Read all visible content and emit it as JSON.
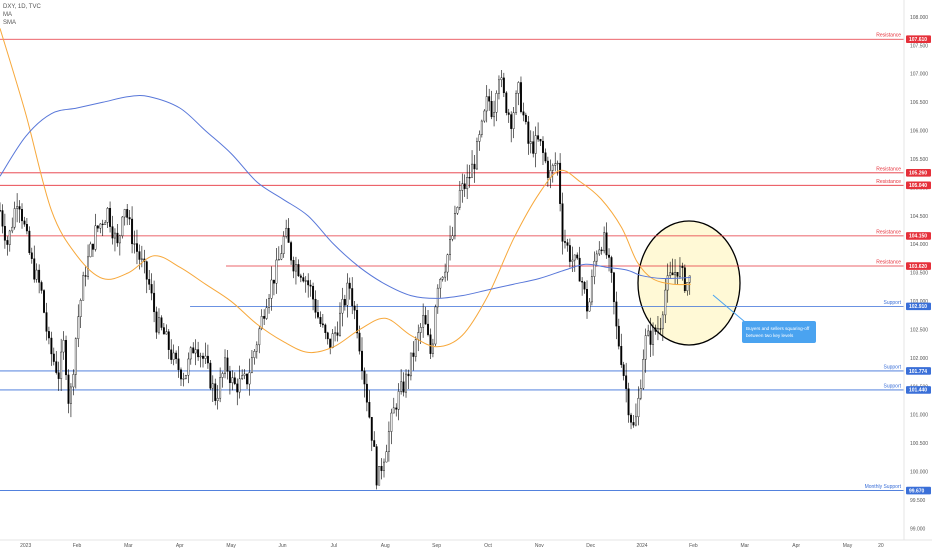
{
  "header": {
    "symbol_line": "DXY, 1D, TVC",
    "indicator_1": "MA",
    "indicator_2": "SMA"
  },
  "chart_data": {
    "type": "candlestick",
    "title": "DXY, 1D, TVC",
    "ylim": [
      98.8,
      108.3
    ],
    "price_ticks": [
      "108.000",
      "107.500",
      "107.000",
      "106.500",
      "106.000",
      "105.500",
      "105.000",
      "104.500",
      "104.000",
      "103.500",
      "103.000",
      "102.500",
      "102.000",
      "101.500",
      "101.000",
      "100.500",
      "100.000",
      "99.500",
      "99.000"
    ],
    "time_labels": [
      "2023",
      "Feb",
      "Mar",
      "Apr",
      "May",
      "Jun",
      "Jul",
      "Aug",
      "Sep",
      "Oct",
      "Nov",
      "Dec",
      "2024",
      "Feb",
      "Mar",
      "Apr",
      "May",
      "20"
    ],
    "x_months": [
      0,
      1,
      2,
      3,
      4,
      5,
      6,
      7,
      8,
      9,
      10,
      11,
      12,
      13,
      14,
      15,
      16,
      16.65
    ],
    "x_range": [
      -0.5,
      17.1
    ],
    "levels": [
      {
        "name": "Resistance",
        "value": 107.61,
        "label": "107.610",
        "color": "#e5303a",
        "start": -0.5
      },
      {
        "name": "Resistance",
        "value": 105.26,
        "label": "105.260",
        "color": "#e5303a",
        "start": -0.5
      },
      {
        "name": "Resistance",
        "value": 105.04,
        "label": "105.040",
        "color": "#e5303a",
        "start": -0.5
      },
      {
        "name": "Resistance",
        "value": 104.15,
        "label": "104.150",
        "color": "#e5303a",
        "start": -0.5
      },
      {
        "name": "Resistance",
        "value": 103.62,
        "label": "103.620",
        "color": "#e5303a",
        "start": 3.9
      },
      {
        "name": "Support",
        "value": 102.91,
        "label": "102.910",
        "color": "#3a6fd8",
        "start": 3.2
      },
      {
        "name": "Support",
        "value": 101.774,
        "label": "101.774",
        "color": "#3a6fd8",
        "start": -0.5
      },
      {
        "name": "Support",
        "value": 101.44,
        "label": "101.440",
        "color": "#3a6fd8",
        "start": -0.5
      },
      {
        "name": "Monthly Support",
        "value": 99.67,
        "label": "99.670",
        "color": "#3a6fd8",
        "start": -0.5
      }
    ],
    "price_path": [
      [
        -0.5,
        104.6
      ],
      [
        -0.35,
        104.0
      ],
      [
        -0.15,
        104.9
      ],
      [
        0.1,
        103.7
      ],
      [
        0.3,
        103.2
      ],
      [
        0.45,
        102.2
      ],
      [
        0.65,
        101.7
      ],
      [
        0.75,
        102.3
      ],
      [
        0.85,
        101.1
      ],
      [
        1.0,
        102.6
      ],
      [
        1.15,
        103.5
      ],
      [
        1.35,
        104.2
      ],
      [
        1.6,
        104.6
      ],
      [
        1.8,
        103.9
      ],
      [
        1.9,
        104.8
      ],
      [
        2.05,
        104.2
      ],
      [
        2.2,
        103.8
      ],
      [
        2.4,
        103.3
      ],
      [
        2.55,
        102.6
      ],
      [
        2.7,
        102.4
      ],
      [
        2.9,
        101.9
      ],
      [
        3.1,
        101.7
      ],
      [
        3.3,
        102.3
      ],
      [
        3.5,
        101.9
      ],
      [
        3.7,
        101.3
      ],
      [
        3.9,
        101.9
      ],
      [
        4.05,
        101.5
      ],
      [
        4.3,
        101.6
      ],
      [
        4.5,
        102.3
      ],
      [
        4.7,
        103.1
      ],
      [
        4.9,
        103.6
      ],
      [
        5.05,
        104.2
      ],
      [
        5.2,
        103.7
      ],
      [
        5.4,
        103.5
      ],
      [
        5.55,
        103.2
      ],
      [
        5.7,
        102.7
      ],
      [
        5.9,
        102.2
      ],
      [
        6.05,
        102.5
      ],
      [
        6.3,
        103.3
      ],
      [
        6.45,
        102.6
      ],
      [
        6.6,
        101.6
      ],
      [
        6.75,
        100.6
      ],
      [
        6.85,
        99.8
      ],
      [
        7.0,
        100.4
      ],
      [
        7.2,
        101.2
      ],
      [
        7.4,
        101.6
      ],
      [
        7.55,
        102.1
      ],
      [
        7.75,
        102.7
      ],
      [
        7.9,
        102.0
      ],
      [
        8.0,
        103.3
      ],
      [
        8.15,
        103.6
      ],
      [
        8.3,
        104.1
      ],
      [
        8.45,
        104.9
      ],
      [
        8.6,
        105.1
      ],
      [
        8.75,
        105.5
      ],
      [
        8.9,
        106.1
      ],
      [
        9.0,
        106.6
      ],
      [
        9.1,
        106.3
      ],
      [
        9.2,
        107.1
      ],
      [
        9.3,
        106.6
      ],
      [
        9.45,
        106.2
      ],
      [
        9.6,
        106.7
      ],
      [
        9.8,
        105.7
      ],
      [
        10.0,
        105.8
      ],
      [
        10.2,
        105.2
      ],
      [
        10.35,
        105.5
      ],
      [
        10.45,
        104.2
      ],
      [
        10.6,
        103.8
      ],
      [
        10.8,
        103.5
      ],
      [
        10.95,
        102.8
      ],
      [
        11.1,
        103.9
      ],
      [
        11.25,
        104.1
      ],
      [
        11.4,
        103.4
      ],
      [
        11.5,
        102.5
      ],
      [
        11.6,
        102.0
      ],
      [
        11.75,
        101.1
      ],
      [
        11.85,
        100.7
      ],
      [
        11.95,
        101.4
      ],
      [
        12.05,
        102.3
      ],
      [
        12.2,
        102.4
      ],
      [
        12.35,
        102.6
      ],
      [
        12.45,
        103.2
      ],
      [
        12.55,
        103.4
      ],
      [
        12.7,
        103.6
      ],
      [
        12.85,
        103.3
      ],
      [
        12.95,
        103.4
      ]
    ],
    "ma_1": [
      [
        -0.5,
        107.8
      ],
      [
        0.0,
        106.3
      ],
      [
        0.5,
        104.6
      ],
      [
        1.0,
        103.8
      ],
      [
        1.5,
        103.4
      ],
      [
        2.0,
        103.5
      ],
      [
        2.5,
        103.8
      ],
      [
        3.0,
        103.6
      ],
      [
        3.5,
        103.3
      ],
      [
        4.0,
        103.0
      ],
      [
        4.5,
        102.6
      ],
      [
        5.0,
        102.3
      ],
      [
        5.5,
        102.1
      ],
      [
        6.0,
        102.2
      ],
      [
        6.5,
        102.5
      ],
      [
        7.0,
        102.7
      ],
      [
        7.5,
        102.4
      ],
      [
        8.0,
        102.2
      ],
      [
        8.5,
        102.4
      ],
      [
        9.0,
        103.1
      ],
      [
        9.5,
        104.1
      ],
      [
        10.0,
        104.9
      ],
      [
        10.4,
        105.3
      ],
      [
        10.8,
        105.1
      ],
      [
        11.2,
        104.8
      ],
      [
        11.6,
        104.3
      ],
      [
        11.9,
        103.7
      ],
      [
        12.2,
        103.4
      ],
      [
        12.6,
        103.3
      ],
      [
        12.95,
        103.3
      ]
    ],
    "ma_2": [
      [
        -0.5,
        105.2
      ],
      [
        0.0,
        105.9
      ],
      [
        0.5,
        106.3
      ],
      [
        1.0,
        106.4
      ],
      [
        1.5,
        106.5
      ],
      [
        2.0,
        106.6
      ],
      [
        2.4,
        106.6
      ],
      [
        3.0,
        106.4
      ],
      [
        3.5,
        106.0
      ],
      [
        4.0,
        105.6
      ],
      [
        4.5,
        105.1
      ],
      [
        5.0,
        104.8
      ],
      [
        5.5,
        104.5
      ],
      [
        6.0,
        104.0
      ],
      [
        6.5,
        103.6
      ],
      [
        7.0,
        103.3
      ],
      [
        7.5,
        103.1
      ],
      [
        8.0,
        103.05
      ],
      [
        8.5,
        103.1
      ],
      [
        9.0,
        103.2
      ],
      [
        9.5,
        103.3
      ],
      [
        10.0,
        103.4
      ],
      [
        10.5,
        103.55
      ],
      [
        10.9,
        103.65
      ],
      [
        11.3,
        103.6
      ],
      [
        11.7,
        103.55
      ],
      [
        12.0,
        103.45
      ],
      [
        12.4,
        103.4
      ],
      [
        12.95,
        103.42
      ]
    ],
    "ma_1_color": "#f7a83b",
    "ma_2_color": "#5877d9",
    "annotation": {
      "text_1": "Buyers and sellers squaring-off",
      "text_2": "between two key levels",
      "circle_fill": "#fff9d6",
      "box_color": "#4aa3f0"
    },
    "axis_bg": "#ffffff",
    "grid": false
  }
}
